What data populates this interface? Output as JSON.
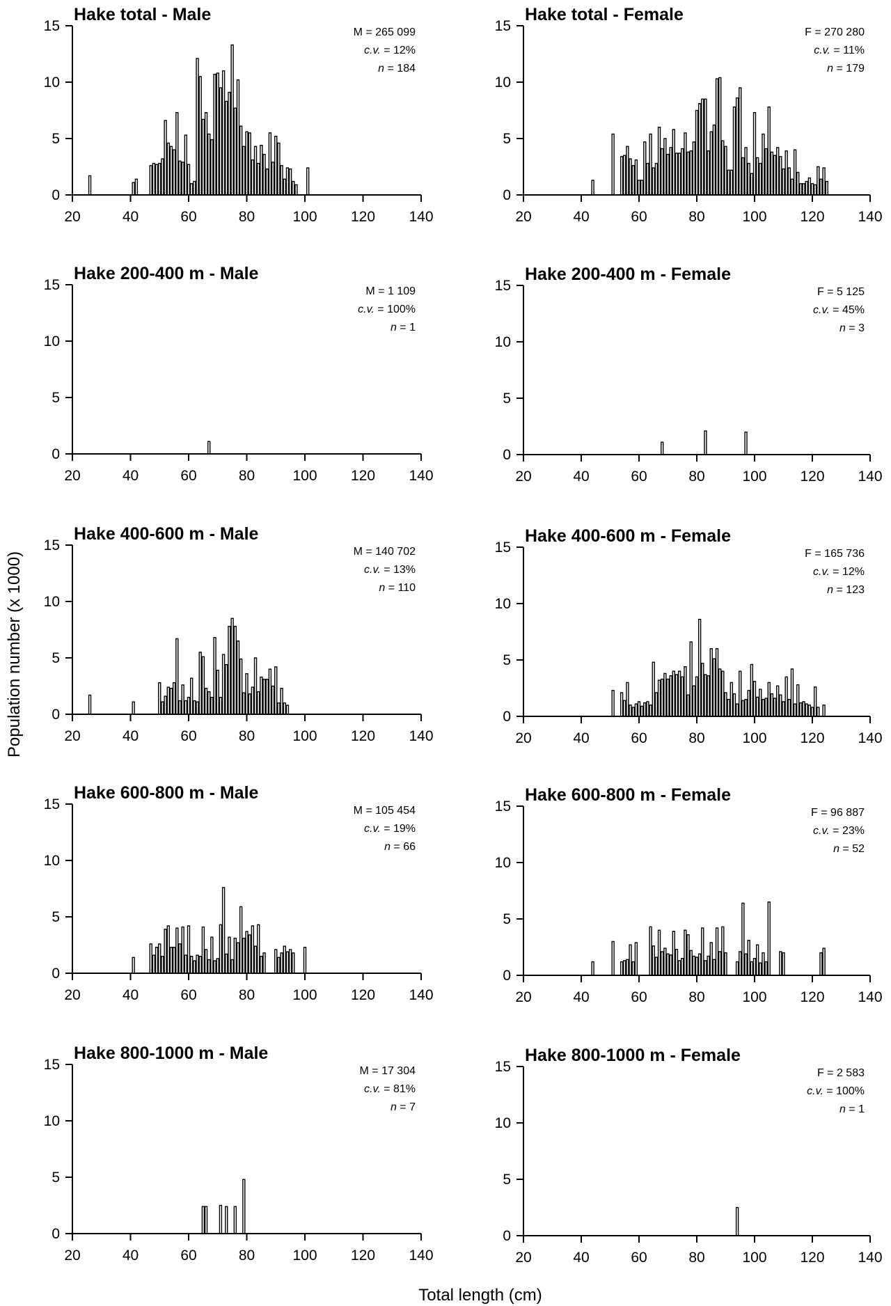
{
  "figure": {
    "xlabel": "Total length (cm)",
    "ylabel": "Population number (x 1000)"
  },
  "chart_data": [
    {
      "type": "bar",
      "title": "Hake total - Male",
      "stats": [
        "M = 265 099",
        "c.v. = 12%",
        "n = 184"
      ],
      "xticks": [
        20,
        40,
        60,
        80,
        100,
        120,
        140
      ],
      "yticks": [
        0,
        5,
        10,
        15
      ],
      "xlim": [
        20,
        140
      ],
      "ylim": [
        0,
        15
      ],
      "x": [
        26,
        41,
        42,
        47,
        48,
        49,
        50,
        51,
        52,
        53,
        54,
        55,
        56,
        57,
        58,
        59,
        60,
        61,
        62,
        63,
        64,
        65,
        66,
        67,
        68,
        69,
        70,
        71,
        72,
        73,
        74,
        75,
        76,
        77,
        78,
        79,
        80,
        81,
        82,
        83,
        84,
        85,
        86,
        87,
        88,
        89,
        90,
        91,
        92,
        93,
        94,
        95,
        96,
        97,
        101
      ],
      "values": [
        1.7,
        1.1,
        1.4,
        2.6,
        2.8,
        2.7,
        2.8,
        3.2,
        6.6,
        4.6,
        4.3,
        4.0,
        7.3,
        3.0,
        2.9,
        5.3,
        2.7,
        1.0,
        1.2,
        12.1,
        10.5,
        6.7,
        7.3,
        5.4,
        4.9,
        10.7,
        10.8,
        9.5,
        11.0,
        8.3,
        9.1,
        13.3,
        7.7,
        10.2,
        6.1,
        4.3,
        5.6,
        5.5,
        3.1,
        4.3,
        2.8,
        4.4,
        3.6,
        2.3,
        5.5,
        2.9,
        5.2,
        4.6,
        2.6,
        1.4,
        2.4,
        2.3,
        1.2,
        0.9,
        2.4
      ]
    },
    {
      "type": "bar",
      "title": "Hake total - Female",
      "stats": [
        "F = 270 280",
        "c.v. = 11%",
        "n = 179"
      ],
      "xticks": [
        20,
        40,
        60,
        80,
        100,
        120,
        140
      ],
      "yticks": [
        0,
        5,
        10,
        15
      ],
      "xlim": [
        20,
        140
      ],
      "ylim": [
        0,
        15
      ],
      "x": [
        44,
        51,
        54,
        55,
        56,
        57,
        58,
        59,
        60,
        61,
        62,
        63,
        64,
        65,
        66,
        67,
        68,
        69,
        70,
        71,
        72,
        73,
        74,
        75,
        76,
        77,
        78,
        79,
        80,
        81,
        82,
        83,
        84,
        85,
        86,
        87,
        88,
        89,
        90,
        91,
        92,
        93,
        94,
        95,
        96,
        97,
        98,
        99,
        100,
        101,
        102,
        103,
        104,
        105,
        106,
        107,
        108,
        109,
        110,
        111,
        112,
        113,
        114,
        115,
        116,
        117,
        118,
        119,
        120,
        121,
        122,
        123,
        124,
        125
      ],
      "values": [
        1.3,
        5.4,
        3.4,
        3.5,
        4.3,
        3.2,
        2.6,
        3.1,
        1.3,
        1.3,
        4.7,
        2.8,
        5.4,
        2.4,
        2.8,
        6.0,
        4.1,
        5.0,
        3.6,
        4.2,
        5.8,
        3.7,
        3.7,
        4.1,
        5.5,
        3.8,
        3.9,
        4.7,
        7.5,
        8.1,
        8.5,
        8.5,
        3.9,
        5.6,
        6.2,
        10.3,
        10.4,
        4.8,
        4.3,
        2.2,
        2.2,
        7.8,
        8.6,
        9.5,
        3.3,
        4.2,
        2.8,
        1.9,
        7.3,
        3.3,
        2.8,
        5.4,
        4.1,
        7.8,
        3.8,
        3.5,
        4.2,
        3.4,
        2.3,
        3.9,
        2.4,
        1.4,
        4.0,
        2.0,
        1.0,
        1.0,
        1.2,
        1.5,
        1.0,
        0.9,
        2.5,
        1.4,
        2.4,
        1.2
      ]
    },
    {
      "type": "bar",
      "title": "Hake 200-400 m - Male",
      "stats": [
        "M = 1 109",
        "c.v. = 100%",
        "n = 1"
      ],
      "xticks": [
        20,
        40,
        60,
        80,
        100,
        120,
        140
      ],
      "yticks": [
        0,
        5,
        10,
        15
      ],
      "xlim": [
        20,
        140
      ],
      "ylim": [
        0,
        15
      ],
      "x": [
        67
      ],
      "values": [
        1.1
      ]
    },
    {
      "type": "bar",
      "title": "Hake 200-400 m - Female",
      "stats": [
        "F = 5 125",
        "c.v. = 45%",
        "n = 3"
      ],
      "xticks": [
        20,
        40,
        60,
        80,
        100,
        120,
        140
      ],
      "yticks": [
        0,
        5,
        10,
        15
      ],
      "xlim": [
        20,
        140
      ],
      "ylim": [
        0,
        15
      ],
      "x": [
        68,
        83,
        97
      ],
      "values": [
        1.1,
        2.1,
        2.0
      ]
    },
    {
      "type": "bar",
      "title": "Hake 400-600 m - Male",
      "stats": [
        "M = 140 702",
        "c.v. = 13%",
        "n = 110"
      ],
      "xticks": [
        20,
        40,
        60,
        80,
        100,
        120,
        140
      ],
      "yticks": [
        0,
        5,
        10,
        15
      ],
      "xlim": [
        20,
        140
      ],
      "ylim": [
        0,
        15
      ],
      "x": [
        26,
        41,
        50,
        51,
        52,
        53,
        54,
        55,
        56,
        57,
        58,
        59,
        60,
        61,
        62,
        63,
        64,
        65,
        66,
        67,
        68,
        69,
        70,
        71,
        72,
        73,
        74,
        75,
        76,
        77,
        78,
        79,
        80,
        81,
        82,
        83,
        84,
        85,
        86,
        87,
        88,
        89,
        90,
        91,
        92,
        93,
        94
      ],
      "values": [
        1.7,
        1.1,
        2.8,
        1.1,
        1.6,
        2.4,
        2.3,
        2.8,
        6.7,
        1.2,
        2.6,
        1.2,
        1.5,
        3.2,
        1.2,
        1.1,
        5.5,
        5.1,
        2.3,
        2.0,
        1.5,
        6.8,
        3.9,
        1.5,
        5.3,
        4.4,
        7.8,
        8.5,
        7.8,
        6.5,
        4.9,
        1.9,
        3.6,
        1.8,
        2.4,
        5.0,
        2.0,
        3.3,
        3.1,
        3.1,
        4.0,
        2.5,
        4.2,
        1.0,
        2.3,
        1.0,
        0.8
      ]
    },
    {
      "type": "bar",
      "title": "Hake 400-600 m - Female",
      "stats": [
        "F = 165 736",
        "c.v. = 12%",
        "n = 123"
      ],
      "xticks": [
        20,
        40,
        60,
        80,
        100,
        120,
        140
      ],
      "yticks": [
        0,
        5,
        10,
        15
      ],
      "xlim": [
        20,
        140
      ],
      "ylim": [
        0,
        15
      ],
      "x": [
        51,
        54,
        55,
        56,
        57,
        58,
        59,
        60,
        61,
        62,
        63,
        64,
        65,
        66,
        67,
        68,
        69,
        70,
        71,
        72,
        73,
        74,
        75,
        76,
        77,
        78,
        79,
        80,
        81,
        82,
        83,
        84,
        85,
        86,
        87,
        88,
        89,
        90,
        91,
        92,
        93,
        94,
        95,
        96,
        97,
        98,
        99,
        100,
        101,
        102,
        103,
        104,
        105,
        106,
        107,
        108,
        109,
        110,
        111,
        112,
        113,
        114,
        115,
        116,
        117,
        118,
        119,
        120,
        121,
        122,
        124
      ],
      "values": [
        2.3,
        2.1,
        1.4,
        3.0,
        1.0,
        0.8,
        1.1,
        1.3,
        0.9,
        1.2,
        1.3,
        1.0,
        4.8,
        2.1,
        3.2,
        3.3,
        3.8,
        3.3,
        3.6,
        4.0,
        3.7,
        4.0,
        3.5,
        4.4,
        1.9,
        6.6,
        2.7,
        3.5,
        8.6,
        4.7,
        3.7,
        3.6,
        6.0,
        5.1,
        6.0,
        4.2,
        4.0,
        2.1,
        1.5,
        3.0,
        2.0,
        1.1,
        4.0,
        1.4,
        1.5,
        2.3,
        4.6,
        3.1,
        1.7,
        2.4,
        1.5,
        1.6,
        3.0,
        2.0,
        1.6,
        2.7,
        1.9,
        1.3,
        3.5,
        1.5,
        4.2,
        1.1,
        2.8,
        1.2,
        1.3,
        1.1,
        1.0,
        0.8,
        2.6,
        0.8,
        1.0
      ]
    },
    {
      "type": "bar",
      "title": "Hake 600-800 m - Male",
      "stats": [
        "M = 105 454",
        "c.v. = 19%",
        "n = 66"
      ],
      "xticks": [
        20,
        40,
        60,
        80,
        100,
        120,
        140
      ],
      "yticks": [
        0,
        5,
        10,
        15
      ],
      "xlim": [
        20,
        140
      ],
      "ylim": [
        0,
        15
      ],
      "x": [
        41,
        47,
        48,
        49,
        50,
        51,
        52,
        53,
        54,
        55,
        56,
        57,
        58,
        59,
        60,
        61,
        62,
        63,
        64,
        65,
        66,
        67,
        68,
        69,
        70,
        71,
        72,
        73,
        74,
        75,
        76,
        77,
        78,
        79,
        80,
        81,
        82,
        83,
        84,
        85,
        86,
        90,
        91,
        92,
        93,
        94,
        95,
        96,
        100
      ],
      "values": [
        1.4,
        2.6,
        1.6,
        2.3,
        2.6,
        1.5,
        3.9,
        4.2,
        2.3,
        2.3,
        4.0,
        2.6,
        4.1,
        1.6,
        4.2,
        1.5,
        1.1,
        1.6,
        1.5,
        4.1,
        2.1,
        1.2,
        3.2,
        1.1,
        1.3,
        4.3,
        7.6,
        1.7,
        3.2,
        1.2,
        3.1,
        2.7,
        5.9,
        3.1,
        3.7,
        3.4,
        4.2,
        2.4,
        4.3,
        1.5,
        1.8,
        2.1,
        1.4,
        1.8,
        2.4,
        1.9,
        2.1,
        1.8,
        2.3
      ]
    },
    {
      "type": "bar",
      "title": "Hake 600-800 m - Female",
      "stats": [
        "F = 96 887",
        "c.v. = 23%",
        "n = 52"
      ],
      "xticks": [
        20,
        40,
        60,
        80,
        100,
        120,
        140
      ],
      "yticks": [
        0,
        5,
        10,
        15
      ],
      "xlim": [
        20,
        140
      ],
      "ylim": [
        0,
        15
      ],
      "x": [
        44,
        51,
        54,
        55,
        56,
        57,
        58,
        59,
        64,
        65,
        66,
        67,
        68,
        69,
        70,
        71,
        72,
        73,
        74,
        75,
        76,
        77,
        78,
        79,
        80,
        81,
        82,
        83,
        84,
        85,
        86,
        87,
        88,
        89,
        90,
        94,
        95,
        96,
        97,
        98,
        99,
        100,
        101,
        102,
        103,
        104,
        105,
        109,
        110,
        123,
        124
      ],
      "values": [
        1.2,
        3.0,
        1.2,
        1.3,
        1.4,
        2.7,
        1.2,
        2.9,
        4.3,
        2.6,
        1.6,
        4.0,
        2.1,
        2.4,
        1.9,
        1.8,
        3.9,
        2.3,
        1.3,
        1.5,
        4.0,
        3.6,
        2.2,
        1.7,
        1.6,
        1.9,
        4.2,
        1.3,
        1.7,
        2.9,
        1.4,
        4.2,
        2.1,
        4.3,
        2.0,
        1.2,
        2.1,
        6.4,
        1.9,
        3.1,
        1.2,
        1.5,
        2.7,
        1.1,
        2.0,
        1.2,
        6.5,
        2.1,
        2.0,
        2.0,
        2.4
      ]
    },
    {
      "type": "bar",
      "title": "Hake 800-1000 m - Male",
      "stats": [
        "M = 17 304",
        "c.v. = 81%",
        "n = 7"
      ],
      "xticks": [
        20,
        40,
        60,
        80,
        100,
        120,
        140
      ],
      "yticks": [
        0,
        5,
        10,
        15
      ],
      "xlim": [
        20,
        140
      ],
      "ylim": [
        0,
        15
      ],
      "x": [
        65,
        66,
        71,
        73,
        76,
        79
      ],
      "values": [
        2.4,
        2.4,
        2.5,
        2.4,
        2.4,
        4.8
      ]
    },
    {
      "type": "bar",
      "title": "Hake 800-1000 m - Female",
      "stats": [
        "F = 2 583",
        "c.v. = 100%",
        "n = 1"
      ],
      "xticks": [
        20,
        40,
        60,
        80,
        100,
        120,
        140
      ],
      "yticks": [
        0,
        5,
        10,
        15
      ],
      "xlim": [
        20,
        140
      ],
      "ylim": [
        0,
        15
      ],
      "x": [
        94
      ],
      "values": [
        2.5
      ]
    }
  ]
}
